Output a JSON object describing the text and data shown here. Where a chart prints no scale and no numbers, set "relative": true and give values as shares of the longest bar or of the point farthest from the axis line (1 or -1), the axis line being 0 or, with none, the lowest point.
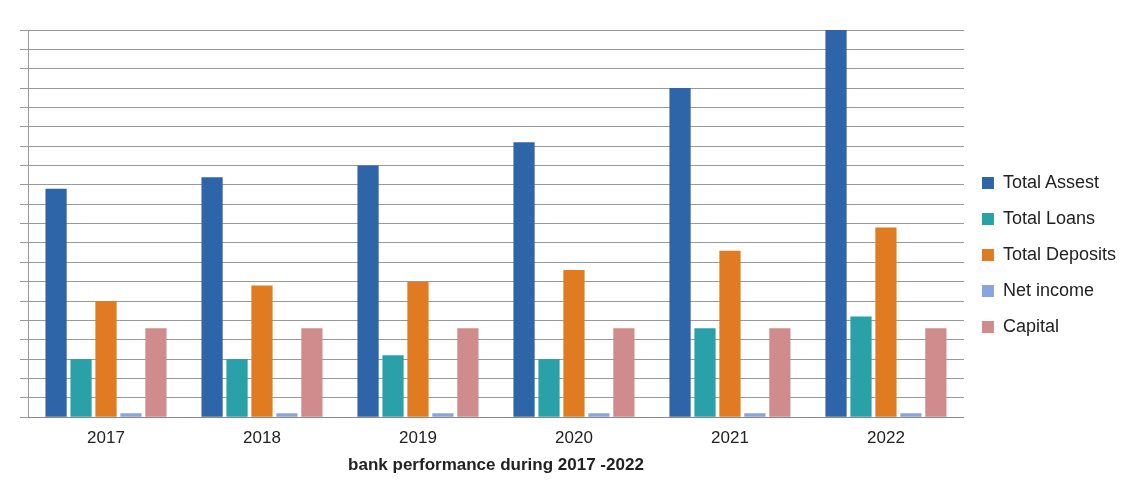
{
  "chart_data": {
    "type": "bar",
    "xlabel": "bank performance during 2017 -2022",
    "relative": true,
    "grid": "y",
    "legend": "right",
    "categories": [
      "2017",
      "2018",
      "2019",
      "2020",
      "2021",
      "2022"
    ],
    "series": [
      {
        "name": "Total Assest",
        "color": "#2e64a8",
        "values": [
          0.59,
          0.62,
          0.65,
          0.71,
          0.85,
          1
        ]
      },
      {
        "name": "Total Loans",
        "color": "#2aa0a8",
        "values": [
          0.15,
          0.15,
          0.16,
          0.15,
          0.23,
          0.26
        ]
      },
      {
        "name": "Total Deposits",
        "color": "#e07b22",
        "values": [
          0.3,
          0.34,
          0.35,
          0.38,
          0.43,
          0.49
        ]
      },
      {
        "name": "Net income",
        "color": "#8aa4e0",
        "values": [
          0.01,
          0.01,
          0.01,
          0.01,
          0.01,
          0.01
        ]
      },
      {
        "name": "Capital",
        "color": "#d08c8c",
        "values": [
          0.23,
          0.23,
          0.23,
          0.23,
          0.23,
          0.23
        ]
      }
    ]
  }
}
